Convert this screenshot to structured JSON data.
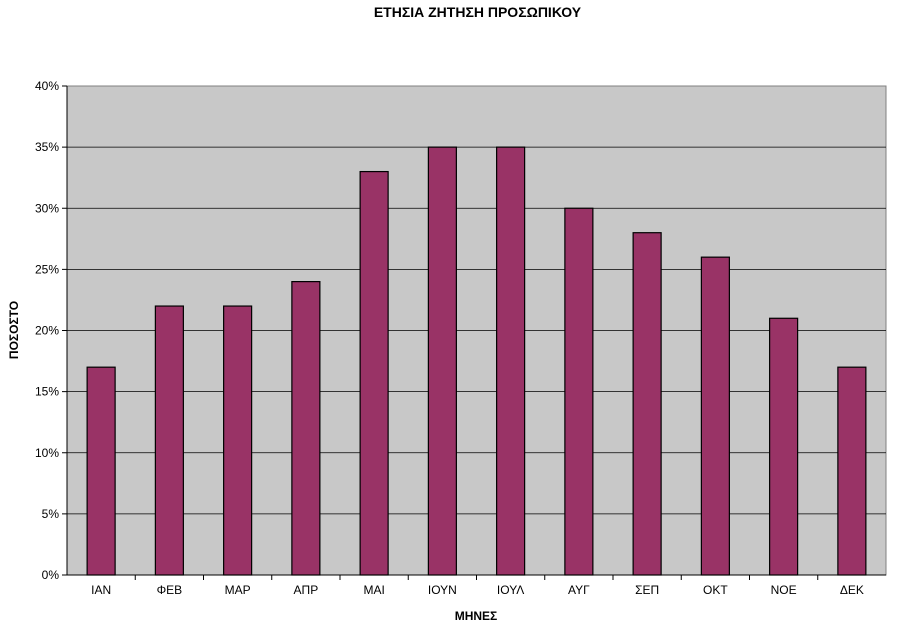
{
  "chart_data": {
    "type": "bar",
    "title": "ΕΤΗΣΙΑ ΖΗΤΗΣΗ ΠΡΟΣΩΠΙΚΟΥ",
    "xlabel": "ΜΗΝΕΣ",
    "ylabel": "ΠΟΣΟΣΤΟ",
    "categories": [
      "ΙΑΝ",
      "ΦΕΒ",
      "ΜΑΡ",
      "ΑΠΡ",
      "ΜΑΙ",
      "ΙΟΥΝ",
      "ΙΟΥΛ",
      "ΑΥΓ",
      "ΣΕΠ",
      "ΟΚΤ",
      "ΝΟΕ",
      "ΔΕΚ"
    ],
    "values": [
      17,
      22,
      22,
      24,
      33,
      35,
      35,
      30,
      28,
      26,
      21,
      17
    ],
    "ylim": [
      0,
      40
    ],
    "yticks": [
      "0%",
      "5%",
      "10%",
      "15%",
      "20%",
      "25%",
      "30%",
      "35%",
      "40%"
    ],
    "grid": true,
    "bar_color": "#993366",
    "plot_background": "#c0c0c0"
  }
}
